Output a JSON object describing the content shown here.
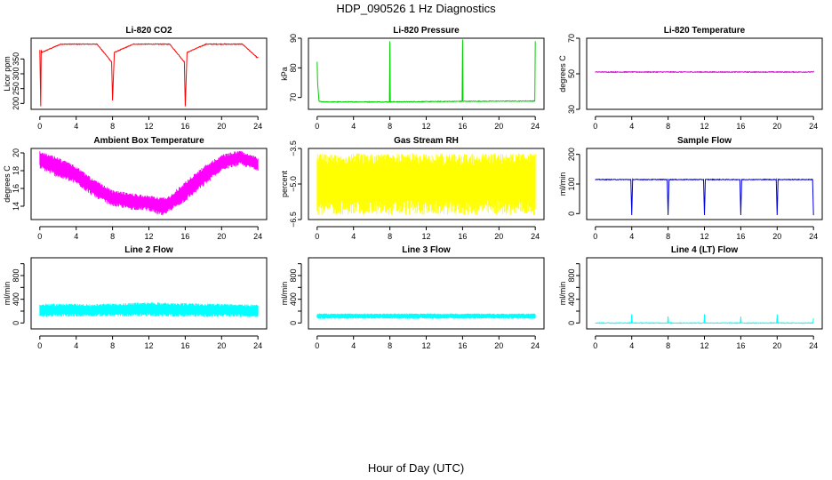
{
  "title": "HDP_090526  1 Hz Diagnostics",
  "xlabel": "Hour of Day (UTC)",
  "chart_data": [
    {
      "type": "line",
      "title": "Li-820 CO2",
      "ylabel": "Licor ppm",
      "color": "#ff0000",
      "xlim": [
        0,
        24
      ],
      "xticks": [
        0,
        4,
        8,
        12,
        16,
        20,
        24
      ],
      "ylim": [
        180,
        420
      ],
      "yticks": [
        200,
        250,
        300,
        350
      ],
      "series": [
        {
          "x": [
            0.0,
            0.1,
            0.15,
            0.2,
            2.3,
            4.3,
            6.3,
            7.9,
            8.0,
            8.2,
            10.3,
            12.3,
            14.3,
            15.9,
            16.0,
            16.2,
            18.3,
            20.3,
            22.3,
            23.9,
            24.0
          ],
          "y": [
            380,
            190,
            380,
            372,
            400,
            400,
            400,
            340,
            210,
            372,
            400,
            400,
            400,
            340,
            190,
            372,
            400,
            400,
            400,
            355,
            355
          ]
        }
      ]
    },
    {
      "type": "line",
      "title": "Li-820 Pressure",
      "ylabel": "kPa",
      "color": "#00cc00",
      "xlim": [
        0,
        24
      ],
      "xticks": [
        0,
        4,
        8,
        12,
        16,
        20,
        24
      ],
      "ylim": [
        66,
        90
      ],
      "yticks": [
        70,
        80,
        90
      ],
      "series": [
        {
          "x": [
            0.0,
            0.05,
            0.2,
            0.5,
            7.95,
            8.0,
            8.05,
            15.95,
            16.0,
            16.05,
            23.95,
            24.0
          ],
          "y": [
            82,
            75,
            68.8,
            68.5,
            68.5,
            89,
            68.5,
            68.7,
            89.5,
            68.7,
            68.8,
            89
          ]
        }
      ]
    },
    {
      "type": "line",
      "title": "Li-820 Temperature",
      "ylabel": "degrees C",
      "color": "#cc00cc",
      "xlim": [
        0,
        24
      ],
      "xticks": [
        0,
        4,
        8,
        12,
        16,
        20,
        24
      ],
      "ylim": [
        30,
        70
      ],
      "yticks": [
        30,
        50,
        70
      ],
      "series": [
        {
          "x": [
            0,
            24
          ],
          "y": [
            51,
            51
          ]
        }
      ]
    },
    {
      "type": "area",
      "title": "Ambient Box Temperature",
      "ylabel": "degrees C",
      "color": "#ff00ff",
      "xlim": [
        0,
        24
      ],
      "xticks": [
        0,
        4,
        8,
        12,
        16,
        20,
        24
      ],
      "ylim": [
        12.5,
        20.5
      ],
      "yticks": [
        14,
        16,
        18,
        20
      ],
      "series": [
        {
          "x": [
            0,
            2,
            4,
            6,
            8,
            10,
            12,
            13.5,
            14,
            16,
            18,
            20,
            22,
            24
          ],
          "low": [
            18.2,
            17.2,
            16.5,
            15.0,
            14.0,
            13.6,
            13.5,
            12.8,
            13.2,
            14.5,
            16.2,
            18.0,
            18.6,
            18.0
          ],
          "high": [
            20.2,
            19.5,
            18.5,
            17.0,
            15.8,
            15.5,
            15.2,
            15.0,
            15.0,
            16.8,
            18.5,
            19.8,
            20.3,
            19.5
          ]
        }
      ]
    },
    {
      "type": "area",
      "title": "Gas Stream RH",
      "ylabel": "percent",
      "color": "#ffff00",
      "xlim": [
        0,
        24
      ],
      "xticks": [
        0,
        4,
        8,
        12,
        16,
        20,
        24
      ],
      "ylim": [
        -6.5,
        -3.5
      ],
      "yticks": [
        -6.5,
        -5.0,
        -3.5
      ],
      "yticklabels": [
        "−6.5",
        "−5.0",
        "−3.5"
      ],
      "series": [
        {
          "x": [
            0,
            24
          ],
          "low": [
            -6.3,
            -6.3
          ],
          "high": [
            -3.7,
            -3.7
          ]
        }
      ]
    },
    {
      "type": "line",
      "title": "Sample Flow",
      "ylabel": "ml/min",
      "color": "#0000dd",
      "xlim": [
        0,
        24
      ],
      "xticks": [
        0,
        4,
        8,
        12,
        16,
        20,
        24
      ],
      "ylim": [
        -20,
        220
      ],
      "yticks": [
        0,
        100,
        200
      ],
      "series": [
        {
          "x": [
            0,
            3.9,
            4.0,
            4.1,
            7.9,
            8.0,
            8.1,
            11.9,
            12.0,
            12.1,
            15.9,
            16.0,
            16.1,
            19.9,
            20.0,
            20.1,
            23.9,
            24.0
          ],
          "y": [
            115,
            115,
            -5,
            115,
            115,
            -5,
            115,
            115,
            -5,
            115,
            115,
            -5,
            115,
            115,
            -5,
            115,
            115,
            -5
          ]
        }
      ]
    },
    {
      "type": "area",
      "title": "Line 2 Flow",
      "ylabel": "ml/min",
      "color": "#00ffff",
      "xlim": [
        0,
        24
      ],
      "xticks": [
        0,
        4,
        8,
        12,
        16,
        20,
        24
      ],
      "ylim": [
        -100,
        1100
      ],
      "yticks": [
        0,
        200,
        400,
        600,
        800,
        1000
      ],
      "yticklabels": [
        "0",
        "",
        "400",
        "",
        "800",
        ""
      ],
      "series": [
        {
          "x": [
            0,
            6,
            12,
            18,
            24
          ],
          "low": [
            100,
            110,
            110,
            100,
            100
          ],
          "high": [
            330,
            320,
            350,
            330,
            310
          ]
        }
      ]
    },
    {
      "type": "area",
      "title": "Line 3 Flow",
      "ylabel": "ml/min",
      "color": "#00ffff",
      "xlim": [
        0,
        24
      ],
      "xticks": [
        0,
        4,
        8,
        12,
        16,
        20,
        24
      ],
      "ylim": [
        -100,
        1100
      ],
      "yticks": [
        0,
        200,
        400,
        600,
        800,
        1000
      ],
      "yticklabels": [
        "0",
        "",
        "400",
        "",
        "800",
        ""
      ],
      "series": [
        {
          "x": [
            0,
            24
          ],
          "low": [
            70,
            70
          ],
          "high": [
            160,
            160
          ]
        }
      ]
    },
    {
      "type": "line",
      "title": "Line 4 (LT) Flow",
      "ylabel": "ml/min",
      "color": "#00ffff",
      "xlim": [
        0,
        24
      ],
      "xticks": [
        0,
        4,
        8,
        12,
        16,
        20,
        24
      ],
      "ylim": [
        -100,
        1100
      ],
      "yticks": [
        0,
        200,
        400,
        600,
        800,
        1000
      ],
      "yticklabels": [
        "0",
        "",
        "400",
        "",
        "800",
        ""
      ],
      "series": [
        {
          "x": [
            0,
            3.95,
            4.0,
            4.05,
            7.95,
            8.0,
            8.05,
            11.95,
            12.0,
            12.05,
            15.95,
            16.0,
            16.05,
            19.95,
            20.0,
            20.05,
            23.95,
            24.0
          ],
          "y": [
            0,
            0,
            150,
            0,
            0,
            110,
            0,
            0,
            150,
            0,
            0,
            100,
            0,
            0,
            140,
            0,
            0,
            80
          ]
        }
      ]
    }
  ]
}
